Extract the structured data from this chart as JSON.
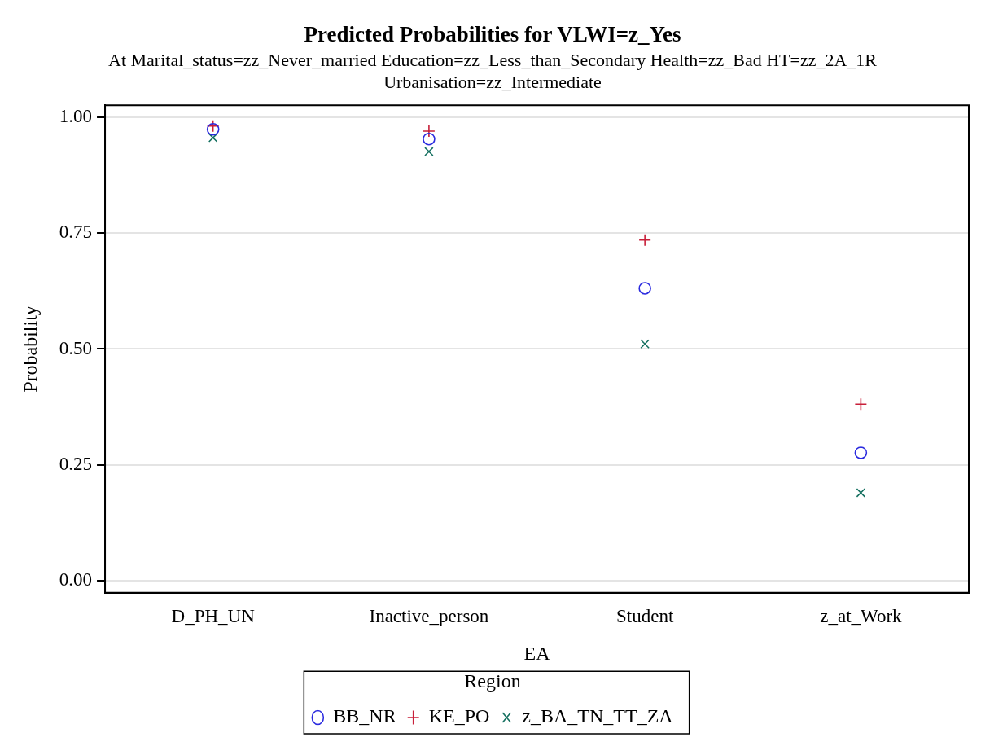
{
  "chart_data": {
    "type": "scatter",
    "title": "Predicted Probabilities for VLWI=z_Yes",
    "subtitle": "At Marital_status=zz_Never_married Education=zz_Less_than_Secondary Health=zz_Bad HT=zz_2A_1R\nUrbanisation=zz_Intermediate",
    "xlabel": "EA",
    "ylabel": "Probability",
    "legend_title": "Region",
    "categories": [
      "D_PH_UN",
      "Inactive_person",
      "Student",
      "z_at_Work"
    ],
    "series": [
      {
        "name": "BB_NR",
        "color": "#2b2bdf",
        "marker": "circle",
        "values": [
          0.974,
          0.953,
          0.631,
          0.276
        ]
      },
      {
        "name": "KE_PO",
        "color": "#c8203a",
        "marker": "plus",
        "values": [
          0.981,
          0.97,
          0.735,
          0.381
        ]
      },
      {
        "name": "z_BA_TN_TT_ZA",
        "color": "#157060",
        "marker": "cross",
        "values": [
          0.956,
          0.926,
          0.511,
          0.19
        ]
      }
    ],
    "ylim": [
      -0.026,
      1.026
    ],
    "yticks": [
      {
        "value": 0,
        "label": "0.00"
      },
      {
        "value": 0.25,
        "label": "0.25"
      },
      {
        "value": 0.5,
        "label": "0.50"
      },
      {
        "value": 0.75,
        "label": "0.75"
      },
      {
        "value": 1,
        "label": "1.00"
      }
    ],
    "grid": "y",
    "legend": "bottom"
  }
}
